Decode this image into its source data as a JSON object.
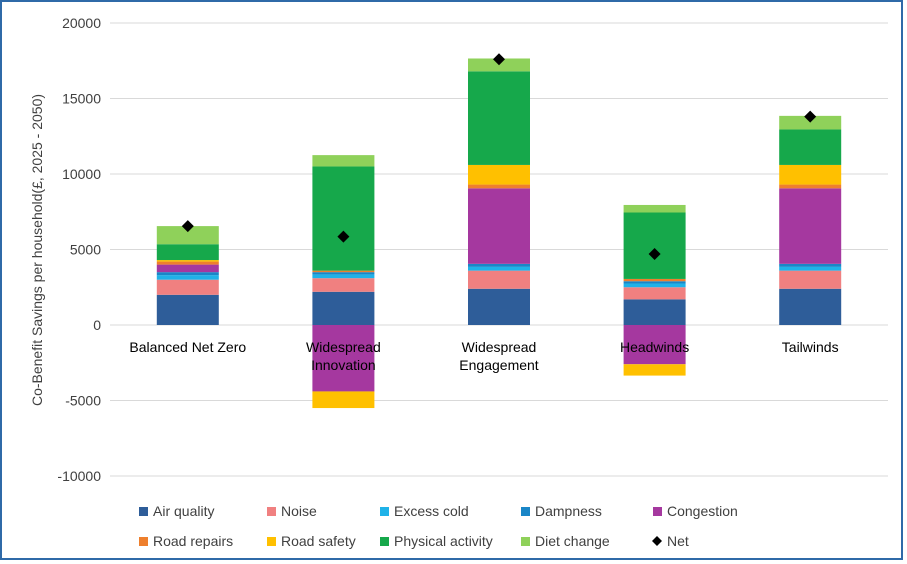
{
  "chart_data": {
    "type": "bar",
    "stacked": true,
    "title": "",
    "xlabel": "",
    "ylabel": "Co-Benefit Savings per household(£, 2025 - 2050)",
    "ylim": [
      -10000,
      20000
    ],
    "yticks": [
      -10000,
      -5000,
      0,
      5000,
      10000,
      15000,
      20000
    ],
    "grid": true,
    "legend_position": "bottom",
    "categories": [
      "Balanced Net Zero",
      "Widespread Innovation",
      "Widespread Engagement",
      "Headwinds",
      "Tailwinds"
    ],
    "category_lines": [
      [
        "Balanced Net Zero"
      ],
      [
        "Widespread",
        "Innovation"
      ],
      [
        "Widespread",
        "Engagement"
      ],
      [
        "Headwinds"
      ],
      [
        "Tailwinds"
      ]
    ],
    "series": [
      {
        "name": "Air quality",
        "color": "#2e5d99",
        "values": [
          2000,
          2200,
          2400,
          1700,
          2400
        ]
      },
      {
        "name": "Noise",
        "color": "#f08080",
        "values": [
          1000,
          900,
          1200,
          800,
          1200
        ]
      },
      {
        "name": "Excess cold",
        "color": "#1fb2e8",
        "values": [
          300,
          250,
          250,
          250,
          250
        ]
      },
      {
        "name": "Dampness",
        "color": "#1a86c7",
        "values": [
          200,
          150,
          200,
          150,
          200
        ]
      },
      {
        "name": "Congestion",
        "color": "#a5389f",
        "values": [
          500,
          -4400,
          5000,
          -2600,
          5000
        ]
      },
      {
        "name": "Road repairs",
        "color": "#ee7f2d",
        "values": [
          200,
          100,
          250,
          150,
          250
        ]
      },
      {
        "name": "Road safety",
        "color": "#ffc000",
        "values": [
          100,
          -1100,
          1300,
          -750,
          1300
        ]
      },
      {
        "name": "Physical activity",
        "color": "#16a84b",
        "values": [
          1050,
          6900,
          6200,
          4400,
          2350
        ]
      },
      {
        "name": "Diet change",
        "color": "#8fd15a",
        "values": [
          1200,
          750,
          850,
          500,
          900
        ]
      }
    ],
    "net": {
      "name": "Net",
      "color": "#000000",
      "values": [
        6550,
        5850,
        17600,
        4700,
        13800
      ]
    },
    "legend_order": [
      "Air quality",
      "Noise",
      "Excess cold",
      "Dampness",
      "Congestion",
      "Road repairs",
      "Road safety",
      "Physical activity",
      "Diet change",
      "Net"
    ]
  }
}
